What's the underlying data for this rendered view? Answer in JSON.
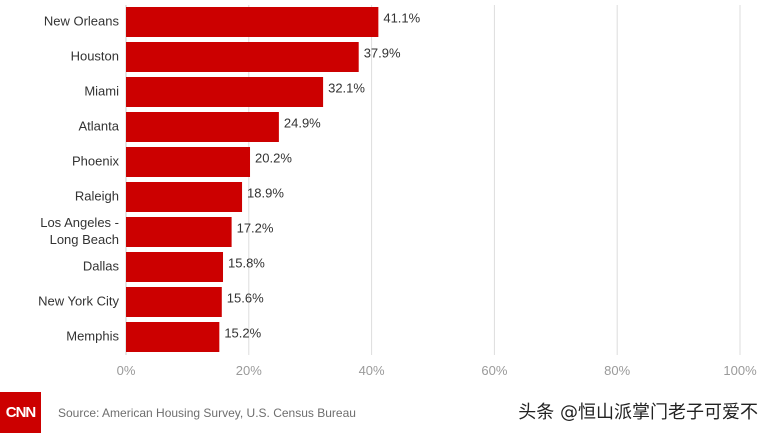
{
  "chart_data": {
    "type": "bar",
    "orientation": "horizontal",
    "categories": [
      "New Orleans",
      "Houston",
      "Miami",
      "Atlanta",
      "Phoenix",
      "Raleigh",
      [
        "Los Angeles -",
        "Long Beach"
      ],
      "Dallas",
      "New York City",
      "Memphis"
    ],
    "values": [
      41.1,
      37.9,
      32.1,
      24.9,
      20.2,
      18.9,
      17.2,
      15.8,
      15.6,
      15.2
    ],
    "value_labels": [
      "41.1%",
      "37.9%",
      "32.1%",
      "24.9%",
      "20.2%",
      "18.9%",
      "17.2%",
      "15.8%",
      "15.6%",
      "15.2%"
    ],
    "xlim": [
      0,
      100
    ],
    "xticks": [
      0,
      20,
      40,
      60,
      80,
      100
    ],
    "xtick_labels": [
      "0%",
      "20%",
      "40%",
      "60%",
      "80%",
      "100%"
    ],
    "grid": true,
    "bar_color": "#cc0000",
    "grid_color": "#dddddd"
  },
  "footer": {
    "logo_text": "CNN",
    "source": "Source: American Housing Survey, U.S. Census Bureau",
    "watermark": "头条 @恒山派掌门老子可爱不"
  }
}
